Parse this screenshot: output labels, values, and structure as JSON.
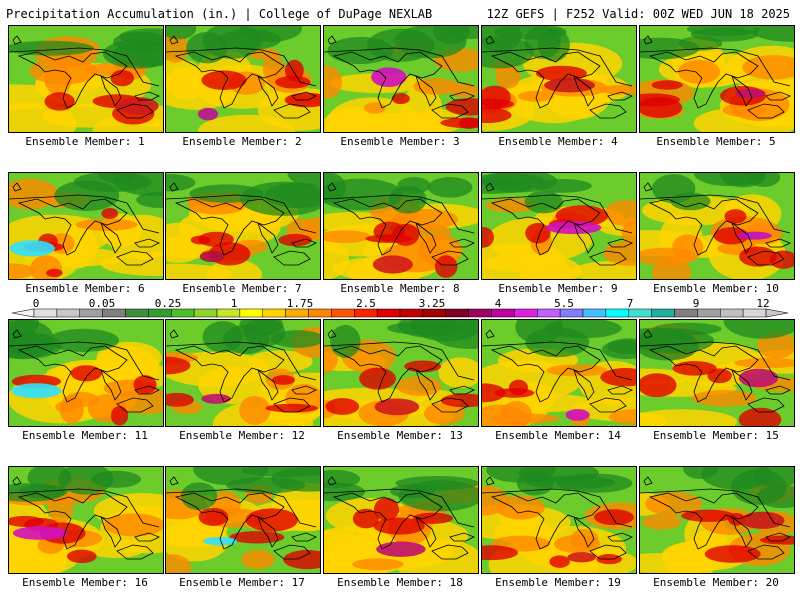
{
  "header": {
    "left": "Precipitation Accumulation (in.) | College of DuPage NEXLAB",
    "right": "12Z GEFS | F252 Valid: 00Z WED JUN 18 2025"
  },
  "members": [
    {
      "label": "Ensemble Member: 1",
      "accent": "#d01a1a"
    },
    {
      "label": "Ensemble Member: 2",
      "accent": "#c01090"
    },
    {
      "label": "Ensemble Member: 3",
      "accent": "#d010c0"
    },
    {
      "label": "Ensemble Member: 4",
      "accent": "#c81818"
    },
    {
      "label": "Ensemble Member: 5",
      "accent": "#c01070"
    },
    {
      "label": "Ensemble Member: 6",
      "accent": "#30e0ff"
    },
    {
      "label": "Ensemble Member: 7",
      "accent": "#b01040"
    },
    {
      "label": "Ensemble Member: 8",
      "accent": "#d01a1a"
    },
    {
      "label": "Ensemble Member: 9",
      "accent": "#d010c0"
    },
    {
      "label": "Ensemble Member: 10",
      "accent": "#c010c0"
    },
    {
      "label": "Ensemble Member: 11",
      "accent": "#30e0ff"
    },
    {
      "label": "Ensemble Member: 12",
      "accent": "#c01070"
    },
    {
      "label": "Ensemble Member: 13",
      "accent": "#d01a1a"
    },
    {
      "label": "Ensemble Member: 14",
      "accent": "#d010c0"
    },
    {
      "label": "Ensemble Member: 15",
      "accent": "#c01070"
    },
    {
      "label": "Ensemble Member: 16",
      "accent": "#d010c0"
    },
    {
      "label": "Ensemble Member: 17",
      "accent": "#30e0ff"
    },
    {
      "label": "Ensemble Member: 18",
      "accent": "#c01070"
    },
    {
      "label": "Ensemble Member: 19",
      "accent": "#d01a1a"
    },
    {
      "label": "Ensemble Member: 20",
      "accent": "#c81818"
    }
  ],
  "colorbar": {
    "ticks": [
      "0",
      "0.05",
      "0.25",
      "1",
      "1.75",
      "2.5",
      "3.25",
      "4",
      "5.5",
      "7",
      "9",
      "12"
    ],
    "colors": [
      "#e0e0e0",
      "#c8c8c8",
      "#a0a0a0",
      "#808080",
      "#3f8f3f",
      "#2f9f2f",
      "#4cbf2c",
      "#8fd42c",
      "#c8e628",
      "#ffff00",
      "#ffd400",
      "#ffaa00",
      "#ff8800",
      "#ff5500",
      "#ff2200",
      "#e00000",
      "#c00000",
      "#a00000",
      "#800020",
      "#a00060",
      "#c000a0",
      "#e020e0",
      "#c060ff",
      "#8080ff",
      "#40c0ff",
      "#00ffff",
      "#40e0d0",
      "#20b0a0",
      "#808080",
      "#a0a0a0",
      "#c0c0c0",
      "#d8d8d8"
    ]
  }
}
